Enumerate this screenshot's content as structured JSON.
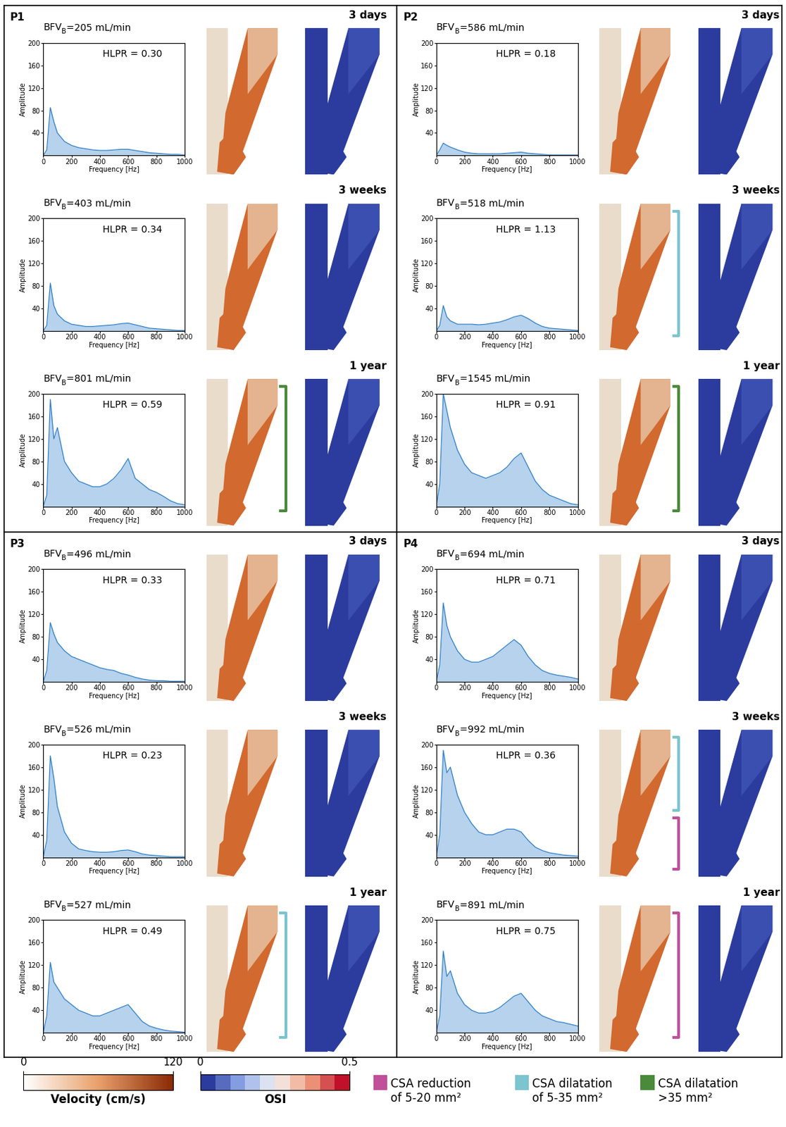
{
  "chart_data": [
    {
      "type": "line",
      "panel": "P1",
      "title": "3 days",
      "bfv": {
        "label": "BFV",
        "subscript": "B",
        "text": "=205 mL/min"
      },
      "annotation": "HLPR = 0.30",
      "xlabel": "Frequency [Hz]",
      "ylabel": "Amplitude",
      "color": "#2f7fc9",
      "xlim": [
        0,
        1000
      ],
      "ylim": [
        0,
        200
      ],
      "xticks": [
        0,
        200,
        400,
        600,
        800,
        1000
      ],
      "yticks": [
        40,
        80,
        120,
        160,
        200
      ],
      "brackets": [],
      "x": [
        0,
        25,
        50,
        75,
        100,
        150,
        200,
        250,
        300,
        350,
        400,
        450,
        500,
        550,
        600,
        650,
        700,
        750,
        800,
        850,
        900,
        950,
        1000
      ],
      "values": [
        0,
        10,
        85,
        60,
        40,
        25,
        18,
        14,
        12,
        10,
        9,
        9,
        10,
        11,
        11,
        9,
        7,
        5,
        4,
        3,
        2,
        2,
        1
      ]
    },
    {
      "type": "line",
      "panel": "P1",
      "title": "3 weeks",
      "bfv": {
        "label": "BFV",
        "subscript": "B",
        "text": "=403 mL/min"
      },
      "annotation": "HLPR = 0.34",
      "xlabel": "Frequency [Hz]",
      "ylabel": "Amplitude",
      "color": "#2f7fc9",
      "xlim": [
        0,
        1000
      ],
      "ylim": [
        0,
        200
      ],
      "xticks": [
        0,
        200,
        400,
        600,
        800,
        1000
      ],
      "yticks": [
        40,
        80,
        120,
        160,
        200
      ],
      "brackets": [],
      "x": [
        0,
        25,
        50,
        75,
        100,
        150,
        200,
        250,
        300,
        350,
        400,
        450,
        500,
        550,
        600,
        650,
        700,
        750,
        800,
        850,
        900,
        950,
        1000
      ],
      "values": [
        0,
        10,
        85,
        45,
        30,
        18,
        12,
        10,
        8,
        8,
        9,
        10,
        11,
        13,
        14,
        11,
        8,
        5,
        4,
        3,
        2,
        1,
        1
      ]
    },
    {
      "type": "line",
      "panel": "P1",
      "title": "1 year",
      "bfv": {
        "label": "BFV",
        "subscript": "B",
        "text": "=801 mL/min"
      },
      "annotation": "HLPR = 0.59",
      "xlabel": "Frequency [Hz]",
      "ylabel": "Amplitude",
      "color": "#2f7fc9",
      "xlim": [
        0,
        1000
      ],
      "ylim": [
        0,
        200
      ],
      "xticks": [
        0,
        200,
        400,
        600,
        800,
        1000
      ],
      "yticks": [
        40,
        80,
        120,
        160,
        200
      ],
      "brackets": [
        "#4a8a3a"
      ],
      "x": [
        0,
        25,
        50,
        75,
        100,
        150,
        200,
        250,
        300,
        350,
        400,
        450,
        500,
        550,
        600,
        650,
        700,
        750,
        800,
        850,
        900,
        950,
        1000
      ],
      "values": [
        0,
        20,
        190,
        120,
        140,
        80,
        60,
        45,
        40,
        35,
        35,
        40,
        50,
        65,
        85,
        50,
        40,
        30,
        25,
        18,
        10,
        5,
        3
      ]
    },
    {
      "type": "line",
      "panel": "P2",
      "title": "3 days",
      "bfv": {
        "label": "BFV",
        "subscript": "B",
        "text": "=586 mL/min"
      },
      "annotation": "HLPR = 0.18",
      "xlabel": "Frequency [Hz]",
      "ylabel": "Amplitude",
      "color": "#2f7fc9",
      "xlim": [
        0,
        1000
      ],
      "ylim": [
        0,
        200
      ],
      "xticks": [
        0,
        200,
        400,
        600,
        800,
        1000
      ],
      "yticks": [
        40,
        80,
        120,
        160,
        200
      ],
      "brackets": [],
      "x": [
        0,
        25,
        50,
        75,
        100,
        150,
        200,
        250,
        300,
        350,
        400,
        450,
        500,
        550,
        600,
        650,
        700,
        750,
        800,
        850,
        900,
        950,
        1000
      ],
      "values": [
        0,
        10,
        22,
        18,
        15,
        10,
        6,
        4,
        3,
        3,
        3,
        3,
        4,
        5,
        6,
        4,
        3,
        2,
        1,
        1,
        1,
        1,
        1
      ]
    },
    {
      "type": "line",
      "panel": "P2",
      "title": "3 weeks",
      "bfv": {
        "label": "BFV",
        "subscript": "B",
        "text": "=518 mL/min"
      },
      "annotation": "HLPR = 1.13",
      "xlabel": "Frequency [Hz]",
      "ylabel": "Amplitude",
      "color": "#2f7fc9",
      "xlim": [
        0,
        1000
      ],
      "ylim": [
        0,
        200
      ],
      "xticks": [
        0,
        200,
        400,
        600,
        800,
        1000
      ],
      "yticks": [
        40,
        80,
        120,
        160,
        200
      ],
      "brackets": [
        "#7cc4cf"
      ],
      "x": [
        0,
        25,
        50,
        75,
        100,
        150,
        200,
        250,
        300,
        350,
        400,
        450,
        500,
        550,
        600,
        650,
        700,
        750,
        800,
        850,
        900,
        950,
        1000
      ],
      "values": [
        0,
        10,
        45,
        25,
        18,
        12,
        12,
        12,
        11,
        12,
        14,
        16,
        20,
        25,
        28,
        22,
        14,
        8,
        5,
        4,
        3,
        2,
        1
      ]
    },
    {
      "type": "line",
      "panel": "P2",
      "title": "1 year",
      "bfv": {
        "label": "BFV",
        "subscript": "B",
        "text": "=1545 mL/min"
      },
      "annotation": "HLPR = 0.91",
      "xlabel": "Frequency [Hz]",
      "ylabel": "Amplitude",
      "color": "#2f7fc9",
      "xlim": [
        0,
        1000
      ],
      "ylim": [
        0,
        200
      ],
      "xticks": [
        0,
        200,
        400,
        600,
        800,
        1000
      ],
      "yticks": [
        40,
        80,
        120,
        160,
        200
      ],
      "brackets": [
        "#4a8a3a"
      ],
      "x": [
        0,
        25,
        50,
        75,
        100,
        150,
        200,
        250,
        300,
        350,
        400,
        450,
        500,
        550,
        600,
        650,
        700,
        750,
        800,
        850,
        900,
        950,
        1000
      ],
      "values": [
        0,
        40,
        200,
        170,
        140,
        100,
        75,
        60,
        55,
        50,
        55,
        60,
        70,
        85,
        95,
        70,
        45,
        30,
        20,
        15,
        10,
        5,
        3
      ]
    },
    {
      "type": "line",
      "panel": "P3",
      "title": "3 days",
      "bfv": {
        "label": "BFV",
        "subscript": "B",
        "text": "=496 mL/min"
      },
      "annotation": "HLPR = 0.33",
      "xlabel": "Frequency [Hz]",
      "ylabel": "Amplitude",
      "color": "#2f7fc9",
      "xlim": [
        0,
        1000
      ],
      "ylim": [
        0,
        200
      ],
      "xticks": [
        0,
        200,
        400,
        600,
        800,
        1000
      ],
      "yticks": [
        40,
        80,
        120,
        160,
        200
      ],
      "brackets": [],
      "x": [
        0,
        25,
        50,
        75,
        100,
        150,
        200,
        250,
        300,
        350,
        400,
        450,
        500,
        550,
        600,
        650,
        700,
        750,
        800,
        850,
        900,
        950,
        1000
      ],
      "values": [
        0,
        20,
        105,
        85,
        70,
        55,
        45,
        40,
        35,
        30,
        25,
        22,
        20,
        15,
        12,
        8,
        5,
        3,
        2,
        2,
        1,
        1,
        1
      ]
    },
    {
      "type": "line",
      "panel": "P3",
      "title": "3 weeks",
      "bfv": {
        "label": "BFV",
        "subscript": "B",
        "text": "=526 mL/min"
      },
      "annotation": "HLPR = 0.23",
      "xlabel": "Frequency [Hz]",
      "ylabel": "Amplitude",
      "color": "#2f7fc9",
      "xlim": [
        0,
        1000
      ],
      "ylim": [
        0,
        200
      ],
      "xticks": [
        0,
        200,
        400,
        600,
        800,
        1000
      ],
      "yticks": [
        40,
        80,
        120,
        160,
        200
      ],
      "brackets": [],
      "x": [
        0,
        25,
        50,
        75,
        100,
        150,
        200,
        250,
        300,
        350,
        400,
        450,
        500,
        550,
        600,
        650,
        700,
        750,
        800,
        850,
        900,
        950,
        1000
      ],
      "values": [
        0,
        30,
        180,
        140,
        90,
        45,
        25,
        15,
        12,
        10,
        9,
        9,
        10,
        12,
        13,
        10,
        6,
        4,
        3,
        2,
        1,
        1,
        1
      ]
    },
    {
      "type": "line",
      "panel": "P3",
      "title": "1 year",
      "bfv": {
        "label": "BFV",
        "subscript": "B",
        "text": "=527 mL/min"
      },
      "annotation": "HLPR = 0.49",
      "xlabel": "Frequency [Hz]",
      "ylabel": "Amplitude",
      "color": "#2f7fc9",
      "xlim": [
        0,
        1000
      ],
      "ylim": [
        0,
        200
      ],
      "xticks": [
        0,
        200,
        400,
        600,
        800,
        1000
      ],
      "yticks": [
        40,
        80,
        120,
        160,
        200
      ],
      "brackets": [
        "#7cc4cf"
      ],
      "x": [
        0,
        25,
        50,
        75,
        100,
        150,
        200,
        250,
        300,
        350,
        400,
        450,
        500,
        550,
        600,
        650,
        700,
        750,
        800,
        850,
        900,
        950,
        1000
      ],
      "values": [
        0,
        30,
        125,
        90,
        80,
        60,
        50,
        40,
        35,
        30,
        30,
        35,
        40,
        45,
        50,
        35,
        20,
        12,
        8,
        5,
        3,
        2,
        1
      ]
    },
    {
      "type": "line",
      "panel": "P4",
      "title": "3 days",
      "bfv": {
        "label": "BFV",
        "subscript": "B",
        "text": "=694 mL/min"
      },
      "annotation": "HLPR = 0.71",
      "xlabel": "Frequency [Hz]",
      "ylabel": "Amplitude",
      "color": "#2f7fc9",
      "xlim": [
        0,
        1000
      ],
      "ylim": [
        0,
        200
      ],
      "xticks": [
        0,
        200,
        400,
        600,
        800,
        1000
      ],
      "yticks": [
        40,
        80,
        120,
        160,
        200
      ],
      "brackets": [],
      "x": [
        0,
        25,
        50,
        75,
        100,
        150,
        200,
        250,
        300,
        350,
        400,
        450,
        500,
        550,
        600,
        650,
        700,
        750,
        800,
        850,
        900,
        950,
        1000
      ],
      "values": [
        0,
        30,
        140,
        100,
        80,
        55,
        40,
        35,
        35,
        40,
        45,
        55,
        65,
        75,
        65,
        45,
        30,
        20,
        15,
        12,
        10,
        8,
        5
      ]
    },
    {
      "type": "line",
      "panel": "P4",
      "title": "3 weeks",
      "bfv": {
        "label": "BFV",
        "subscript": "B",
        "text": "=992 mL/min"
      },
      "annotation": "HLPR = 0.36",
      "xlabel": "Frequency [Hz]",
      "ylabel": "Amplitude",
      "color": "#2f7fc9",
      "xlim": [
        0,
        1000
      ],
      "ylim": [
        0,
        200
      ],
      "xticks": [
        0,
        200,
        400,
        600,
        800,
        1000
      ],
      "yticks": [
        40,
        80,
        120,
        160,
        200
      ],
      "brackets": [
        "#7cc4cf",
        "#c0509a"
      ],
      "x": [
        0,
        25,
        50,
        75,
        100,
        150,
        200,
        250,
        300,
        350,
        400,
        450,
        500,
        550,
        600,
        650,
        700,
        750,
        800,
        850,
        900,
        950,
        1000
      ],
      "values": [
        0,
        40,
        190,
        150,
        160,
        110,
        80,
        60,
        45,
        40,
        40,
        45,
        50,
        50,
        45,
        30,
        18,
        12,
        8,
        6,
        4,
        3,
        2
      ]
    },
    {
      "type": "line",
      "panel": "P4",
      "title": "1 year",
      "bfv": {
        "label": "BFV",
        "subscript": "B",
        "text": "=891 mL/min"
      },
      "annotation": "HLPR = 0.75",
      "xlabel": "Frequency [Hz]",
      "ylabel": "Amplitude",
      "color": "#2f7fc9",
      "xlim": [
        0,
        1000
      ],
      "ylim": [
        0,
        200
      ],
      "xticks": [
        0,
        200,
        400,
        600,
        800,
        1000
      ],
      "yticks": [
        40,
        80,
        120,
        160,
        200
      ],
      "brackets": [
        "#c0509a"
      ],
      "x": [
        0,
        25,
        50,
        75,
        100,
        150,
        200,
        250,
        300,
        350,
        400,
        450,
        500,
        550,
        600,
        650,
        700,
        750,
        800,
        850,
        900,
        950,
        1000
      ],
      "values": [
        0,
        30,
        145,
        100,
        110,
        70,
        50,
        40,
        35,
        35,
        38,
        45,
        55,
        65,
        70,
        55,
        40,
        30,
        25,
        20,
        18,
        15,
        12
      ]
    }
  ],
  "colorbars": [
    {
      "label": "Velocity (cm/s)",
      "range": [
        0,
        120
      ],
      "ticks": [
        0,
        120
      ],
      "colors": [
        "#ffffff",
        "#e8a06a",
        "#8a2a05"
      ]
    },
    {
      "label": "OSI",
      "range": [
        0,
        0.5
      ],
      "ticks": [
        0,
        0.5
      ],
      "colors": [
        "#2b3c9e",
        "#8fa8e8",
        "#f2f2f2",
        "#f0a080",
        "#c0102a"
      ]
    }
  ],
  "legend": [
    {
      "label": "CSA reduction\nof 5-20 mm²",
      "color": "#c0509a"
    },
    {
      "label": "CSA dilatation\nof 5-35 mm²",
      "color": "#7cc4cf"
    },
    {
      "label": "CSA dilatation\n>35 mm²",
      "color": "#4a8a3a"
    }
  ]
}
